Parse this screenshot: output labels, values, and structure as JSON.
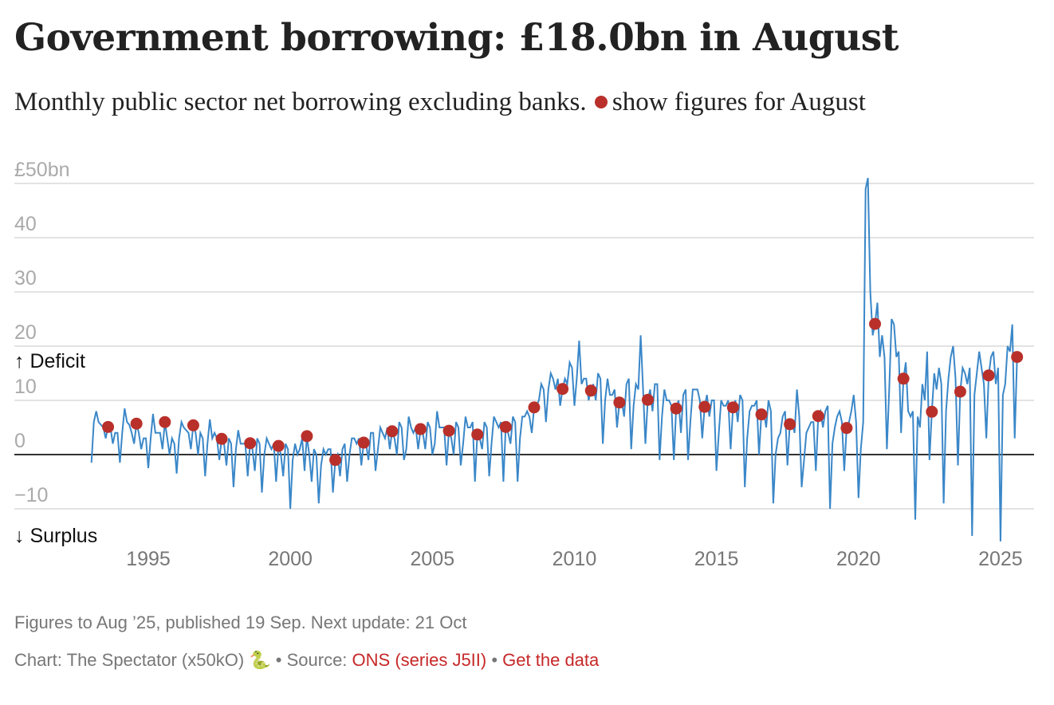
{
  "title": "Government borrowing: £18.0bn in August",
  "subtitle_before": "Monthly public sector net borrowing excluding banks.",
  "subtitle_after": "show figures for August",
  "footer": {
    "line1": "Figures to Aug ’25, published 19 Sep. Next update: 21 Oct",
    "credit": "Chart: The Spectator (x50kO) 🐍",
    "sep1": " • Source: ",
    "source_link": "ONS (series J5II)",
    "sep2": " • ",
    "data_link": "Get the data"
  },
  "colors": {
    "line": "#3a87c8",
    "dot": "#b9302a",
    "grid": "#e3e3e3",
    "zero": "#333333",
    "link": "#c62828"
  },
  "chart_data": {
    "type": "line",
    "title": "Government borrowing: £18.0bn in August",
    "ylabel": "£bn",
    "ylim": [
      -10,
      50
    ],
    "xlim": [
      1993,
      2025.7
    ],
    "grid": true,
    "y_ticks": [
      50,
      40,
      30,
      20,
      10,
      0,
      -10
    ],
    "y_tick_labels": [
      "£50bn",
      "40",
      "30",
      "20",
      "10",
      "0",
      "−10"
    ],
    "x_ticks": [
      1995,
      2000,
      2005,
      2010,
      2015,
      2020,
      2025
    ],
    "x_tick_labels": [
      "1995",
      "2000",
      "2005",
      "2010",
      "2015",
      "2020",
      "2025"
    ],
    "annotations": {
      "deficit": "↑ Deficit",
      "surplus": "↓ Surplus"
    },
    "start_year": 1993,
    "monthly": {
      "1993": [
        -1.5,
        6,
        8,
        6,
        5.5,
        5,
        3,
        5.1,
        5,
        2,
        4,
        4
      ],
      "1994": [
        -1.5,
        4,
        8.5,
        6,
        5.5,
        4,
        2,
        5.7,
        4,
        1,
        3,
        3
      ],
      "1995": [
        -2.5,
        3,
        7.5,
        4,
        4,
        4,
        1,
        6.0,
        3,
        0,
        3,
        2
      ],
      "1996": [
        -3.5,
        3,
        6,
        5,
        4.5,
        4,
        1,
        5.4,
        4,
        0,
        4,
        3
      ],
      "1997": [
        -4,
        2,
        6.5,
        3,
        4,
        3,
        -1,
        2.9,
        2,
        -2,
        3,
        2
      ],
      "1998": [
        -6,
        1,
        4.5,
        2,
        2,
        2,
        -4,
        2.1,
        1,
        -3,
        3,
        2
      ],
      "1999": [
        -7,
        0,
        3,
        2,
        1,
        2,
        -5,
        1.6,
        0,
        -4,
        2,
        1
      ],
      "2000": [
        -10,
        -1,
        2,
        0,
        1,
        3,
        -3,
        3.4,
        0,
        -5,
        1,
        0
      ],
      "2001": [
        -9,
        -2,
        1,
        0,
        1,
        1,
        -7,
        -1.0,
        0,
        -4,
        1,
        2
      ],
      "2002": [
        -5,
        0,
        3,
        3,
        2,
        3,
        -2,
        2.2,
        2,
        -1,
        4,
        4
      ],
      "2003": [
        -3,
        1,
        5,
        4,
        3,
        5,
        1,
        4.3,
        3,
        0,
        6,
        5
      ],
      "2004": [
        -1,
        1,
        7,
        5,
        4,
        5,
        1,
        4.7,
        4,
        1,
        6,
        5
      ],
      "2005": [
        0,
        2,
        8,
        5,
        5,
        5,
        -2,
        4.4,
        3,
        0,
        6,
        5
      ],
      "2006": [
        -2,
        2,
        7,
        5,
        5,
        6,
        -5,
        3.7,
        3,
        1,
        6,
        5
      ],
      "2007": [
        -4,
        2,
        7,
        6,
        5,
        6,
        -5,
        5.1,
        4,
        2,
        7,
        6
      ],
      "2008": [
        -5,
        3,
        7,
        7,
        8,
        7,
        4,
        8.7,
        9,
        10,
        13,
        12
      ],
      "2009": [
        6,
        12,
        15,
        14,
        12,
        14,
        9,
        12.1,
        14,
        13,
        17,
        16
      ],
      "2010": [
        9,
        14,
        21,
        13,
        14,
        14,
        10,
        11.8,
        13,
        10,
        15,
        14
      ],
      "2011": [
        2,
        10,
        14,
        11,
        11,
        12,
        5,
        9.6,
        10,
        7,
        13,
        14
      ],
      "2012": [
        1,
        9,
        13,
        12,
        22,
        12,
        2,
        10.1,
        12,
        8,
        13,
        13
      ],
      "2013": [
        -1,
        7,
        12,
        10,
        10,
        9,
        -1,
        8.5,
        10,
        4,
        11,
        12
      ],
      "2014": [
        -1,
        6,
        12,
        12,
        12,
        10,
        3,
        8.8,
        11,
        7,
        10,
        10
      ],
      "2015": [
        -3,
        4,
        10,
        9,
        9,
        10,
        1,
        8.7,
        10,
        6,
        11,
        10
      ],
      "2016": [
        -6,
        3,
        8,
        9,
        9,
        10,
        0,
        7.4,
        8,
        5,
        10,
        8
      ],
      "2017": [
        -9,
        0,
        3,
        4,
        7,
        8,
        -2,
        5.6,
        6,
        4,
        12,
        7
      ],
      "2018": [
        -6,
        -1,
        4,
        5,
        6,
        6,
        -3,
        7.1,
        8,
        5,
        8,
        9
      ],
      "2019": [
        -10,
        2,
        5,
        7,
        8,
        6,
        -3,
        4.9,
        6,
        8,
        11,
        6
      ],
      "2020": [
        -8,
        1,
        6,
        49,
        51,
        30,
        22,
        24.1,
        28,
        18,
        22,
        18
      ],
      "2021": [
        1,
        12,
        25,
        24,
        18,
        19,
        4,
        14.0,
        17,
        8,
        7,
        8
      ],
      "2022": [
        -12,
        7,
        5,
        13,
        10,
        19,
        -1,
        7.9,
        15,
        12,
        16,
        13
      ],
      "2023": [
        -9,
        8,
        14,
        18,
        20,
        14,
        -2,
        11.6,
        16,
        15,
        13,
        16
      ],
      "2024": [
        -15,
        11,
        15,
        19,
        16,
        13,
        3,
        14.6,
        18,
        19,
        13,
        16
      ],
      "2025": [
        -16,
        11,
        13,
        20,
        19,
        24,
        3,
        18.0
      ]
    },
    "august_highlights": {
      "years": [
        1993,
        1994,
        1995,
        1996,
        1997,
        1998,
        1999,
        2000,
        2001,
        2002,
        2003,
        2004,
        2005,
        2006,
        2007,
        2008,
        2009,
        2010,
        2011,
        2012,
        2013,
        2014,
        2015,
        2016,
        2017,
        2018,
        2019,
        2020,
        2021,
        2022,
        2023,
        2024,
        2025
      ],
      "values": [
        5.1,
        5.7,
        6.0,
        5.4,
        2.9,
        2.1,
        1.6,
        3.4,
        -1.0,
        2.2,
        4.3,
        4.7,
        4.4,
        3.7,
        5.1,
        8.7,
        12.1,
        11.8,
        9.6,
        10.1,
        8.5,
        8.8,
        8.7,
        7.4,
        5.6,
        7.1,
        4.9,
        24.1,
        14.0,
        7.9,
        11.6,
        14.6,
        18.0
      ]
    }
  }
}
